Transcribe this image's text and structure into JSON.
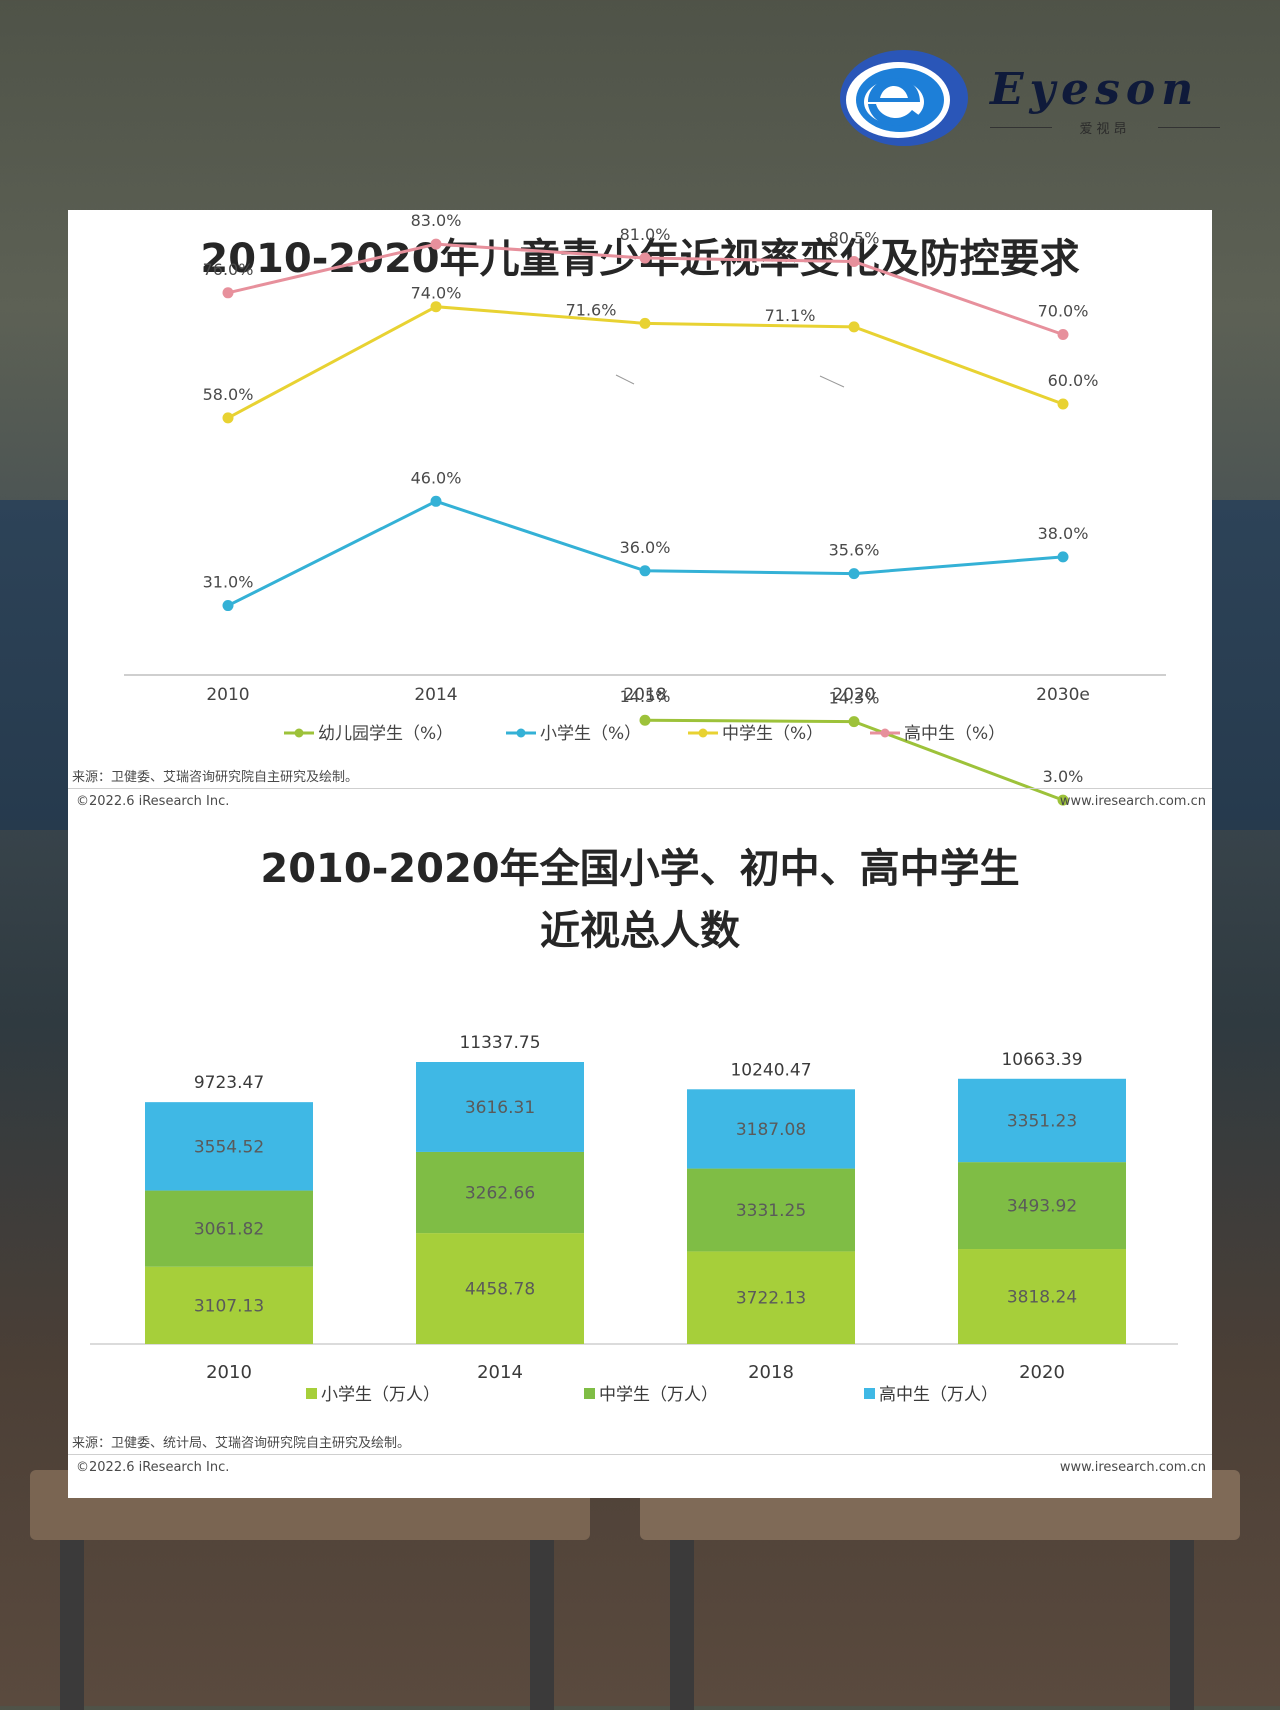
{
  "brand": {
    "name": "Eyeson",
    "sub": "爱视昂"
  },
  "colors": {
    "kindergarten": "#9dc23a",
    "primary": "#34b1d6",
    "middle": "#e8d232",
    "high": "#e7909c",
    "bar_primary": "#a6cf3a",
    "bar_middle": "#7fbd45",
    "bar_high": "#3fb8e5"
  },
  "chart_data": [
    {
      "type": "line",
      "title": "2010-2020年儿童青少年近视率变化及防控要求",
      "categories": [
        "2010",
        "2014",
        "2018",
        "2020",
        "2030e"
      ],
      "series": [
        {
          "name": "幼儿园学生（%）",
          "values": [
            null,
            null,
            14.5,
            14.3,
            3.0
          ],
          "labels": [
            null,
            null,
            "14.5%",
            "14.3%",
            "3.0%"
          ]
        },
        {
          "name": "小学生（%）",
          "values": [
            31.0,
            46.0,
            36.0,
            35.6,
            38.0
          ],
          "labels": [
            "31.0%",
            "46.0%",
            "36.0%",
            "35.6%",
            "38.0%"
          ]
        },
        {
          "name": "中学生（%）",
          "values": [
            58.0,
            74.0,
            71.6,
            71.1,
            60.0
          ],
          "labels": [
            "58.0%",
            "74.0%",
            "71.6%",
            "71.1%",
            "60.0%"
          ]
        },
        {
          "name": "高中生（%）",
          "values": [
            76.0,
            83.0,
            81.0,
            80.5,
            70.0
          ],
          "labels": [
            "76.0%",
            "83.0%",
            "81.0%",
            "80.5%",
            "70.0%"
          ]
        }
      ],
      "legend_position": "bottom",
      "grid": false,
      "source": "来源：卫健委、艾瑞咨询研究院自主研究及绘制。",
      "copyright": "©2022.6 iResearch Inc.",
      "website": "www.iresearch.com.cn"
    },
    {
      "type": "bar",
      "stacked": true,
      "title": "2010-2020年全国小学、初中、高中学生",
      "title_line2": "近视总人数",
      "categories": [
        "2010",
        "2014",
        "2018",
        "2020"
      ],
      "series": [
        {
          "name": "小学生（万人）",
          "values": [
            3107.13,
            4458.78,
            3722.13,
            3818.24
          ],
          "labels": [
            "3107.13",
            "4458.78",
            "3722.13",
            "3818.24"
          ]
        },
        {
          "name": "中学生（万人）",
          "values": [
            3061.82,
            3262.66,
            3331.25,
            3493.92
          ],
          "labels": [
            "3061.82",
            "3262.66",
            "3331.25",
            "3493.92"
          ]
        },
        {
          "name": "高中生（万人）",
          "values": [
            3554.52,
            3616.31,
            3187.08,
            3351.23
          ],
          "labels": [
            "3554.52",
            "3616.31",
            "3187.08",
            "3351.23"
          ]
        }
      ],
      "totals": [
        "9723.47",
        "11337.75",
        "10240.47",
        "10663.39"
      ],
      "total_values": [
        9723.47,
        11337.75,
        10240.47,
        10663.39
      ],
      "legend_position": "bottom",
      "grid": false,
      "source": "来源：卫健委、统计局、艾瑞咨询研究院自主研究及绘制。",
      "copyright": "©2022.6 iResearch Inc.",
      "website": "www.iresearch.com.cn"
    }
  ]
}
